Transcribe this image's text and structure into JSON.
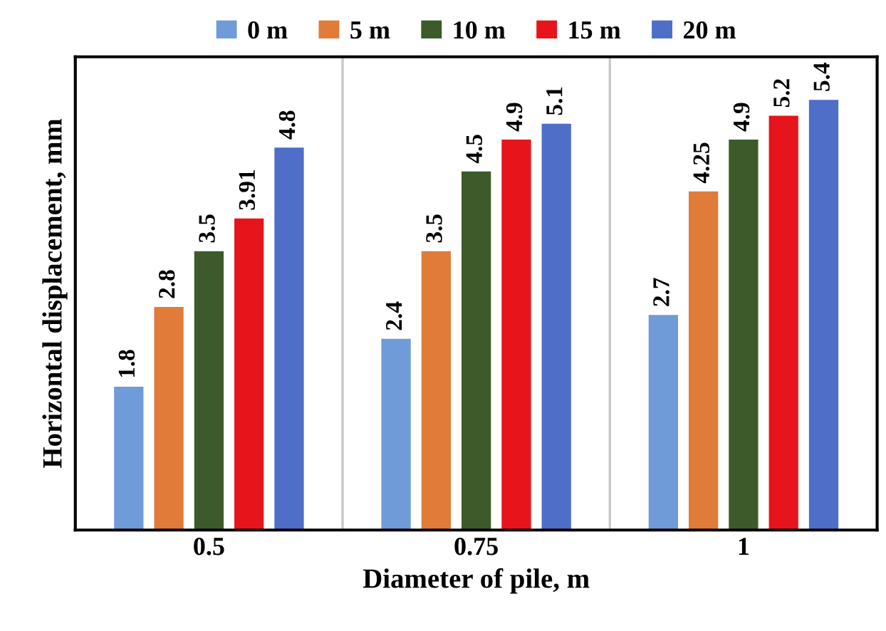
{
  "chart_data": {
    "type": "bar",
    "xlabel": "Diameter of pile, m",
    "ylabel": "Horizontal displacement, mm",
    "categories": [
      "0.5",
      "0.75",
      "1"
    ],
    "series": [
      {
        "name": "0 m",
        "color": "#6f9bd8",
        "values": [
          1.8,
          2.4,
          2.7
        ]
      },
      {
        "name": "5 m",
        "color": "#e07b39",
        "values": [
          2.8,
          3.5,
          4.25
        ]
      },
      {
        "name": "10 m",
        "color": "#3d5a2a",
        "values": [
          3.5,
          4.5,
          4.9
        ]
      },
      {
        "name": "15 m",
        "color": "#e8141c",
        "values": [
          3.91,
          4.9,
          5.2
        ]
      },
      {
        "name": "20 m",
        "color": "#4e6ec8",
        "values": [
          4.8,
          5.1,
          5.4
        ]
      }
    ],
    "data_labels": true,
    "legend": "top",
    "grid": "x",
    "tick_labels": "x"
  }
}
